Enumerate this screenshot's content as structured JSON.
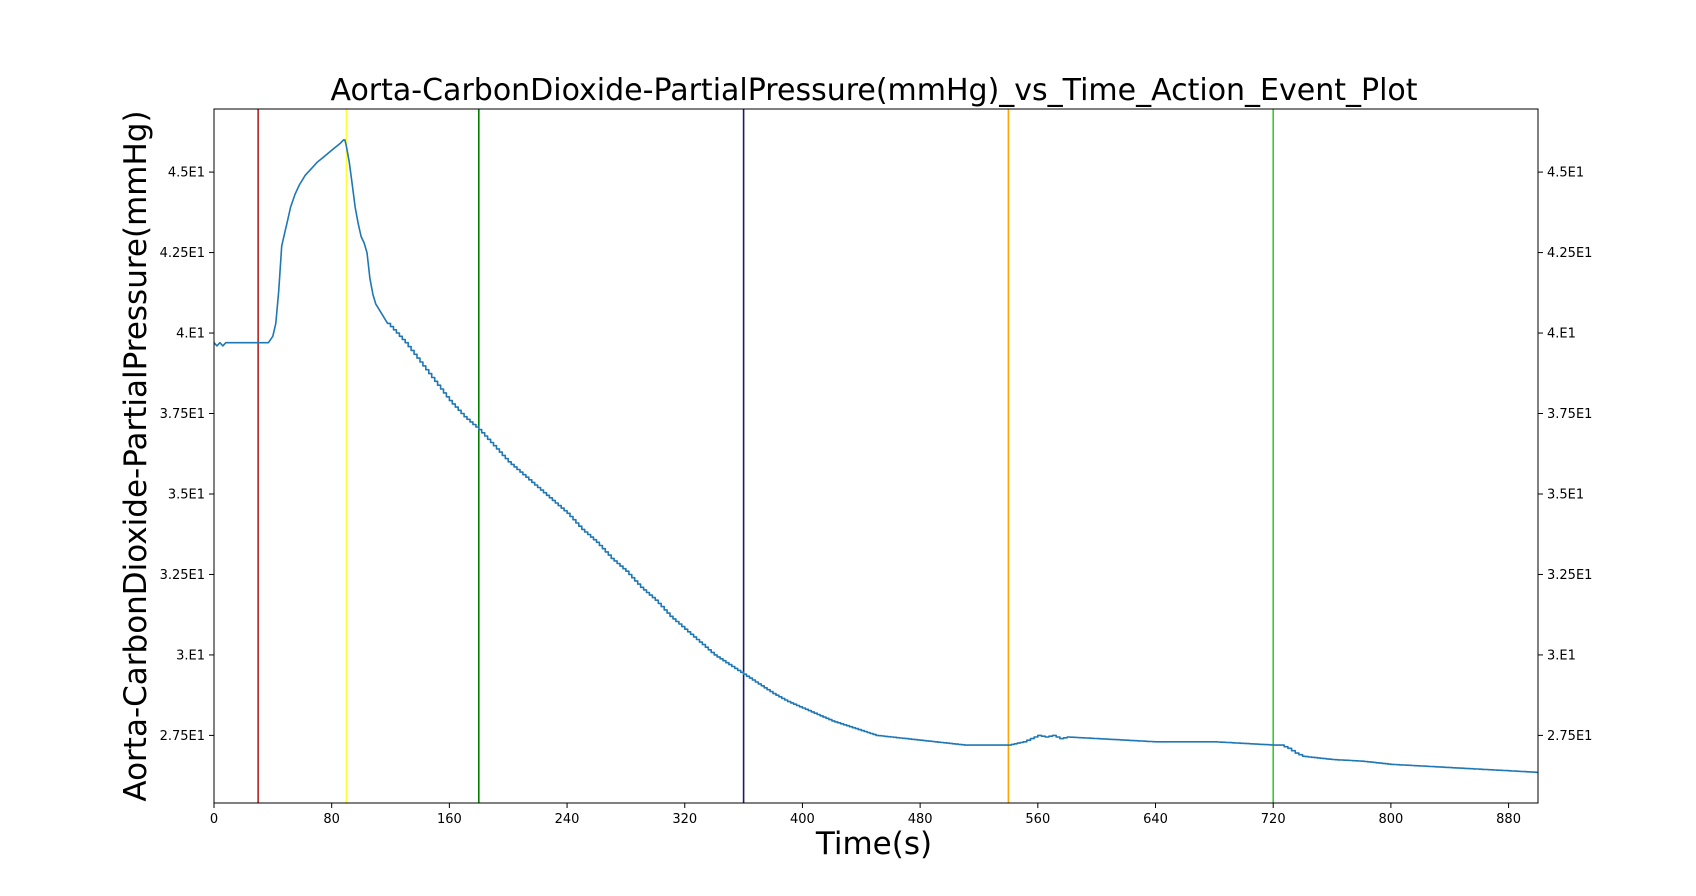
{
  "chart_data": {
    "type": "line",
    "title": "Aorta-CarbonDioxide-PartialPressure(mmHg)_vs_Time_Action_Event_Plot",
    "xlabel": "Time(s)",
    "ylabel": "Aorta-CarbonDioxide-PartialPressure(mmHg)",
    "xlim": [
      0,
      900
    ],
    "ylim": [
      25.4,
      46.96
    ],
    "x_ticks": [
      0,
      80,
      160,
      240,
      320,
      400,
      480,
      560,
      640,
      720,
      800,
      880
    ],
    "x_tick_labels": [
      "0",
      "80",
      "160",
      "240",
      "320",
      "400",
      "480",
      "560",
      "640",
      "720",
      "800",
      "880"
    ],
    "y_ticks": [
      27.5,
      30,
      32.5,
      35,
      37.5,
      40,
      42.5,
      45
    ],
    "y_tick_labels": [
      "2.75E1",
      "3.E1",
      "3.25E1",
      "3.5E1",
      "3.75E1",
      "4.E1",
      "4.25E1",
      "4.5E1"
    ],
    "grid": false,
    "legend": "none",
    "series": [
      {
        "color": "#1f77b4",
        "x": [
          0,
          2,
          4,
          6,
          8,
          10,
          20,
          30,
          37,
          40,
          42,
          44,
          46,
          48,
          50,
          52,
          55,
          58,
          62,
          66,
          70,
          74,
          78,
          82,
          86,
          88,
          89,
          90,
          92,
          94,
          96,
          98,
          100,
          102,
          104,
          106,
          108,
          110,
          114,
          118,
          124,
          130,
          140,
          150,
          160,
          170,
          180,
          190,
          200,
          210,
          220,
          230,
          240,
          250,
          260,
          270,
          280,
          290,
          300,
          310,
          320,
          330,
          340,
          350,
          360,
          370,
          380,
          390,
          400,
          410,
          420,
          430,
          440,
          450,
          460,
          470,
          480,
          490,
          500,
          510,
          520,
          530,
          540,
          550,
          555,
          560,
          565,
          570,
          575,
          580,
          600,
          620,
          640,
          660,
          680,
          700,
          720,
          725,
          730,
          735,
          740,
          750,
          760,
          780,
          800,
          820,
          840,
          860,
          880,
          900
        ],
        "y": [
          39.7,
          39.6,
          39.7,
          39.6,
          39.7,
          39.7,
          39.7,
          39.7,
          39.7,
          39.9,
          40.3,
          41.3,
          42.7,
          43.1,
          43.5,
          43.9,
          44.3,
          44.6,
          44.9,
          45.1,
          45.3,
          45.45,
          45.6,
          45.75,
          45.9,
          46.0,
          46.0,
          45.8,
          45.3,
          44.6,
          43.9,
          43.4,
          43.0,
          42.8,
          42.5,
          41.7,
          41.2,
          40.9,
          40.6,
          40.3,
          40.0,
          39.7,
          39.1,
          38.5,
          37.9,
          37.4,
          37.0,
          36.5,
          36.0,
          35.6,
          35.2,
          34.8,
          34.4,
          33.9,
          33.5,
          33.0,
          32.6,
          32.1,
          31.7,
          31.2,
          30.8,
          30.4,
          30.0,
          29.7,
          29.4,
          29.1,
          28.8,
          28.55,
          28.35,
          28.15,
          27.95,
          27.8,
          27.65,
          27.5,
          27.45,
          27.4,
          27.35,
          27.3,
          27.25,
          27.2,
          27.2,
          27.2,
          27.2,
          27.3,
          27.4,
          27.5,
          27.45,
          27.5,
          27.4,
          27.45,
          27.4,
          27.35,
          27.3,
          27.3,
          27.3,
          27.25,
          27.2,
          27.2,
          27.1,
          26.95,
          26.85,
          26.8,
          26.75,
          26.7,
          26.6,
          26.55,
          26.5,
          26.45,
          26.4,
          26.35
        ]
      }
    ],
    "events": [
      {
        "x": 30,
        "color": "#b22222"
      },
      {
        "x": 90,
        "color": "#ffff33"
      },
      {
        "x": 180,
        "color": "#008000"
      },
      {
        "x": 360,
        "color": "#191970"
      },
      {
        "x": 540,
        "color": "#ffa500"
      },
      {
        "x": 720,
        "color": "#32cd32"
      }
    ]
  }
}
